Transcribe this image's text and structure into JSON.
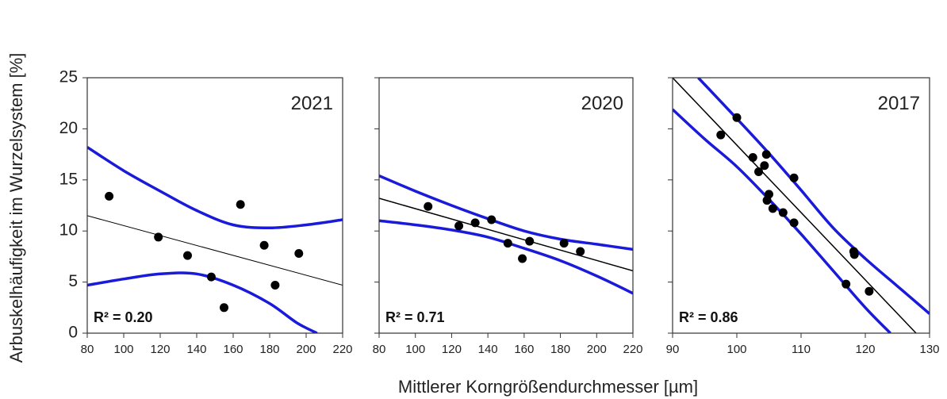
{
  "figure": {
    "ylabel": "Arbuskelhäufigkeit im Wurzelsystem [%]",
    "xlabel": "Mittlerer Korngrößendurchmesser [µm]"
  },
  "colors": {
    "ci": "#1a1adb",
    "fit": "#000000",
    "points": "#000000"
  },
  "chart_data": [
    {
      "type": "scatter",
      "year_label": "2021",
      "r2_label": "R² = 0.20",
      "xlim": [
        80,
        220
      ],
      "ylim": [
        0,
        25
      ],
      "xticks": [
        80,
        100,
        120,
        140,
        160,
        180,
        200,
        220
      ],
      "yticks": [
        0,
        5,
        10,
        15,
        20,
        25
      ],
      "points": [
        {
          "x": 92,
          "y": 13.4
        },
        {
          "x": 119,
          "y": 9.4
        },
        {
          "x": 135,
          "y": 7.6
        },
        {
          "x": 148,
          "y": 5.5
        },
        {
          "x": 155,
          "y": 2.5
        },
        {
          "x": 164,
          "y": 12.6
        },
        {
          "x": 177,
          "y": 8.6
        },
        {
          "x": 183,
          "y": 4.7
        },
        {
          "x": 196,
          "y": 7.8
        }
      ],
      "fit": [
        {
          "x": 80,
          "y": 11.5
        },
        {
          "x": 220,
          "y": 4.7
        }
      ],
      "ci_upper": [
        {
          "x": 80,
          "y": 18.2
        },
        {
          "x": 100,
          "y": 15.9
        },
        {
          "x": 120,
          "y": 13.9
        },
        {
          "x": 140,
          "y": 12.0
        },
        {
          "x": 160,
          "y": 10.6
        },
        {
          "x": 180,
          "y": 10.3
        },
        {
          "x": 200,
          "y": 10.6
        },
        {
          "x": 220,
          "y": 11.1
        }
      ],
      "ci_lower": [
        {
          "x": 80,
          "y": 4.7
        },
        {
          "x": 100,
          "y": 5.3
        },
        {
          "x": 120,
          "y": 5.8
        },
        {
          "x": 140,
          "y": 5.8
        },
        {
          "x": 160,
          "y": 4.7
        },
        {
          "x": 180,
          "y": 2.9
        },
        {
          "x": 195,
          "y": 1.0
        },
        {
          "x": 206,
          "y": 0
        }
      ]
    },
    {
      "type": "scatter",
      "year_label": "2020",
      "r2_label": "R² = 0.71",
      "xlim": [
        80,
        220
      ],
      "ylim": [
        0,
        25
      ],
      "xticks": [
        80,
        100,
        120,
        140,
        160,
        180,
        200,
        220
      ],
      "yticks": [
        0,
        5,
        10,
        15,
        20,
        25
      ],
      "points": [
        {
          "x": 107,
          "y": 12.4
        },
        {
          "x": 124,
          "y": 10.5
        },
        {
          "x": 133,
          "y": 10.8
        },
        {
          "x": 142,
          "y": 11.1
        },
        {
          "x": 151,
          "y": 8.8
        },
        {
          "x": 159,
          "y": 7.3
        },
        {
          "x": 163,
          "y": 9.0
        },
        {
          "x": 182,
          "y": 8.8
        },
        {
          "x": 191,
          "y": 8.0
        }
      ],
      "fit": [
        {
          "x": 80,
          "y": 13.2
        },
        {
          "x": 220,
          "y": 6.1
        }
      ],
      "ci_upper": [
        {
          "x": 80,
          "y": 15.4
        },
        {
          "x": 100,
          "y": 13.9
        },
        {
          "x": 120,
          "y": 12.5
        },
        {
          "x": 140,
          "y": 11.2
        },
        {
          "x": 160,
          "y": 10.0
        },
        {
          "x": 180,
          "y": 9.2
        },
        {
          "x": 200,
          "y": 8.7
        },
        {
          "x": 220,
          "y": 8.2
        }
      ],
      "ci_lower": [
        {
          "x": 80,
          "y": 11.0
        },
        {
          "x": 100,
          "y": 10.6
        },
        {
          "x": 120,
          "y": 10.1
        },
        {
          "x": 140,
          "y": 9.4
        },
        {
          "x": 160,
          "y": 8.3
        },
        {
          "x": 180,
          "y": 7.1
        },
        {
          "x": 200,
          "y": 5.6
        },
        {
          "x": 220,
          "y": 3.9
        }
      ]
    },
    {
      "type": "scatter",
      "year_label": "2017",
      "r2_label": "R² = 0.86",
      "xlim": [
        90,
        130
      ],
      "ylim": [
        0,
        25
      ],
      "xticks": [
        90,
        100,
        110,
        120,
        130
      ],
      "yticks": [
        0,
        5,
        10,
        15,
        20,
        25
      ],
      "points": [
        {
          "x": 97.5,
          "y": 19.4
        },
        {
          "x": 100,
          "y": 21.1
        },
        {
          "x": 102.5,
          "y": 17.2
        },
        {
          "x": 103.4,
          "y": 15.8
        },
        {
          "x": 104.3,
          "y": 16.4
        },
        {
          "x": 104.6,
          "y": 17.5
        },
        {
          "x": 104.7,
          "y": 13.0
        },
        {
          "x": 105.0,
          "y": 13.6
        },
        {
          "x": 105.6,
          "y": 12.2
        },
        {
          "x": 107.2,
          "y": 11.8
        },
        {
          "x": 108.9,
          "y": 15.2
        },
        {
          "x": 108.9,
          "y": 10.8
        },
        {
          "x": 117.0,
          "y": 4.8
        },
        {
          "x": 118.2,
          "y": 8.0
        },
        {
          "x": 118.3,
          "y": 7.7
        },
        {
          "x": 120.6,
          "y": 4.1
        }
      ],
      "fit": [
        {
          "x": 90,
          "y": 25
        },
        {
          "x": 127.9,
          "y": 0
        }
      ],
      "ci_upper": [
        {
          "x": 94.0,
          "y": 25
        },
        {
          "x": 100,
          "y": 21.0
        },
        {
          "x": 105,
          "y": 17.6
        },
        {
          "x": 110,
          "y": 14.0
        },
        {
          "x": 115,
          "y": 10.3
        },
        {
          "x": 120,
          "y": 7.3
        },
        {
          "x": 125,
          "y": 4.6
        },
        {
          "x": 130,
          "y": 1.9
        }
      ],
      "ci_lower": [
        {
          "x": 90,
          "y": 21.9
        },
        {
          "x": 95,
          "y": 19.0
        },
        {
          "x": 100,
          "y": 16.3
        },
        {
          "x": 105,
          "y": 13.1
        },
        {
          "x": 110,
          "y": 9.7
        },
        {
          "x": 115,
          "y": 6.1
        },
        {
          "x": 120,
          "y": 2.5
        },
        {
          "x": 123.9,
          "y": 0
        }
      ]
    }
  ]
}
